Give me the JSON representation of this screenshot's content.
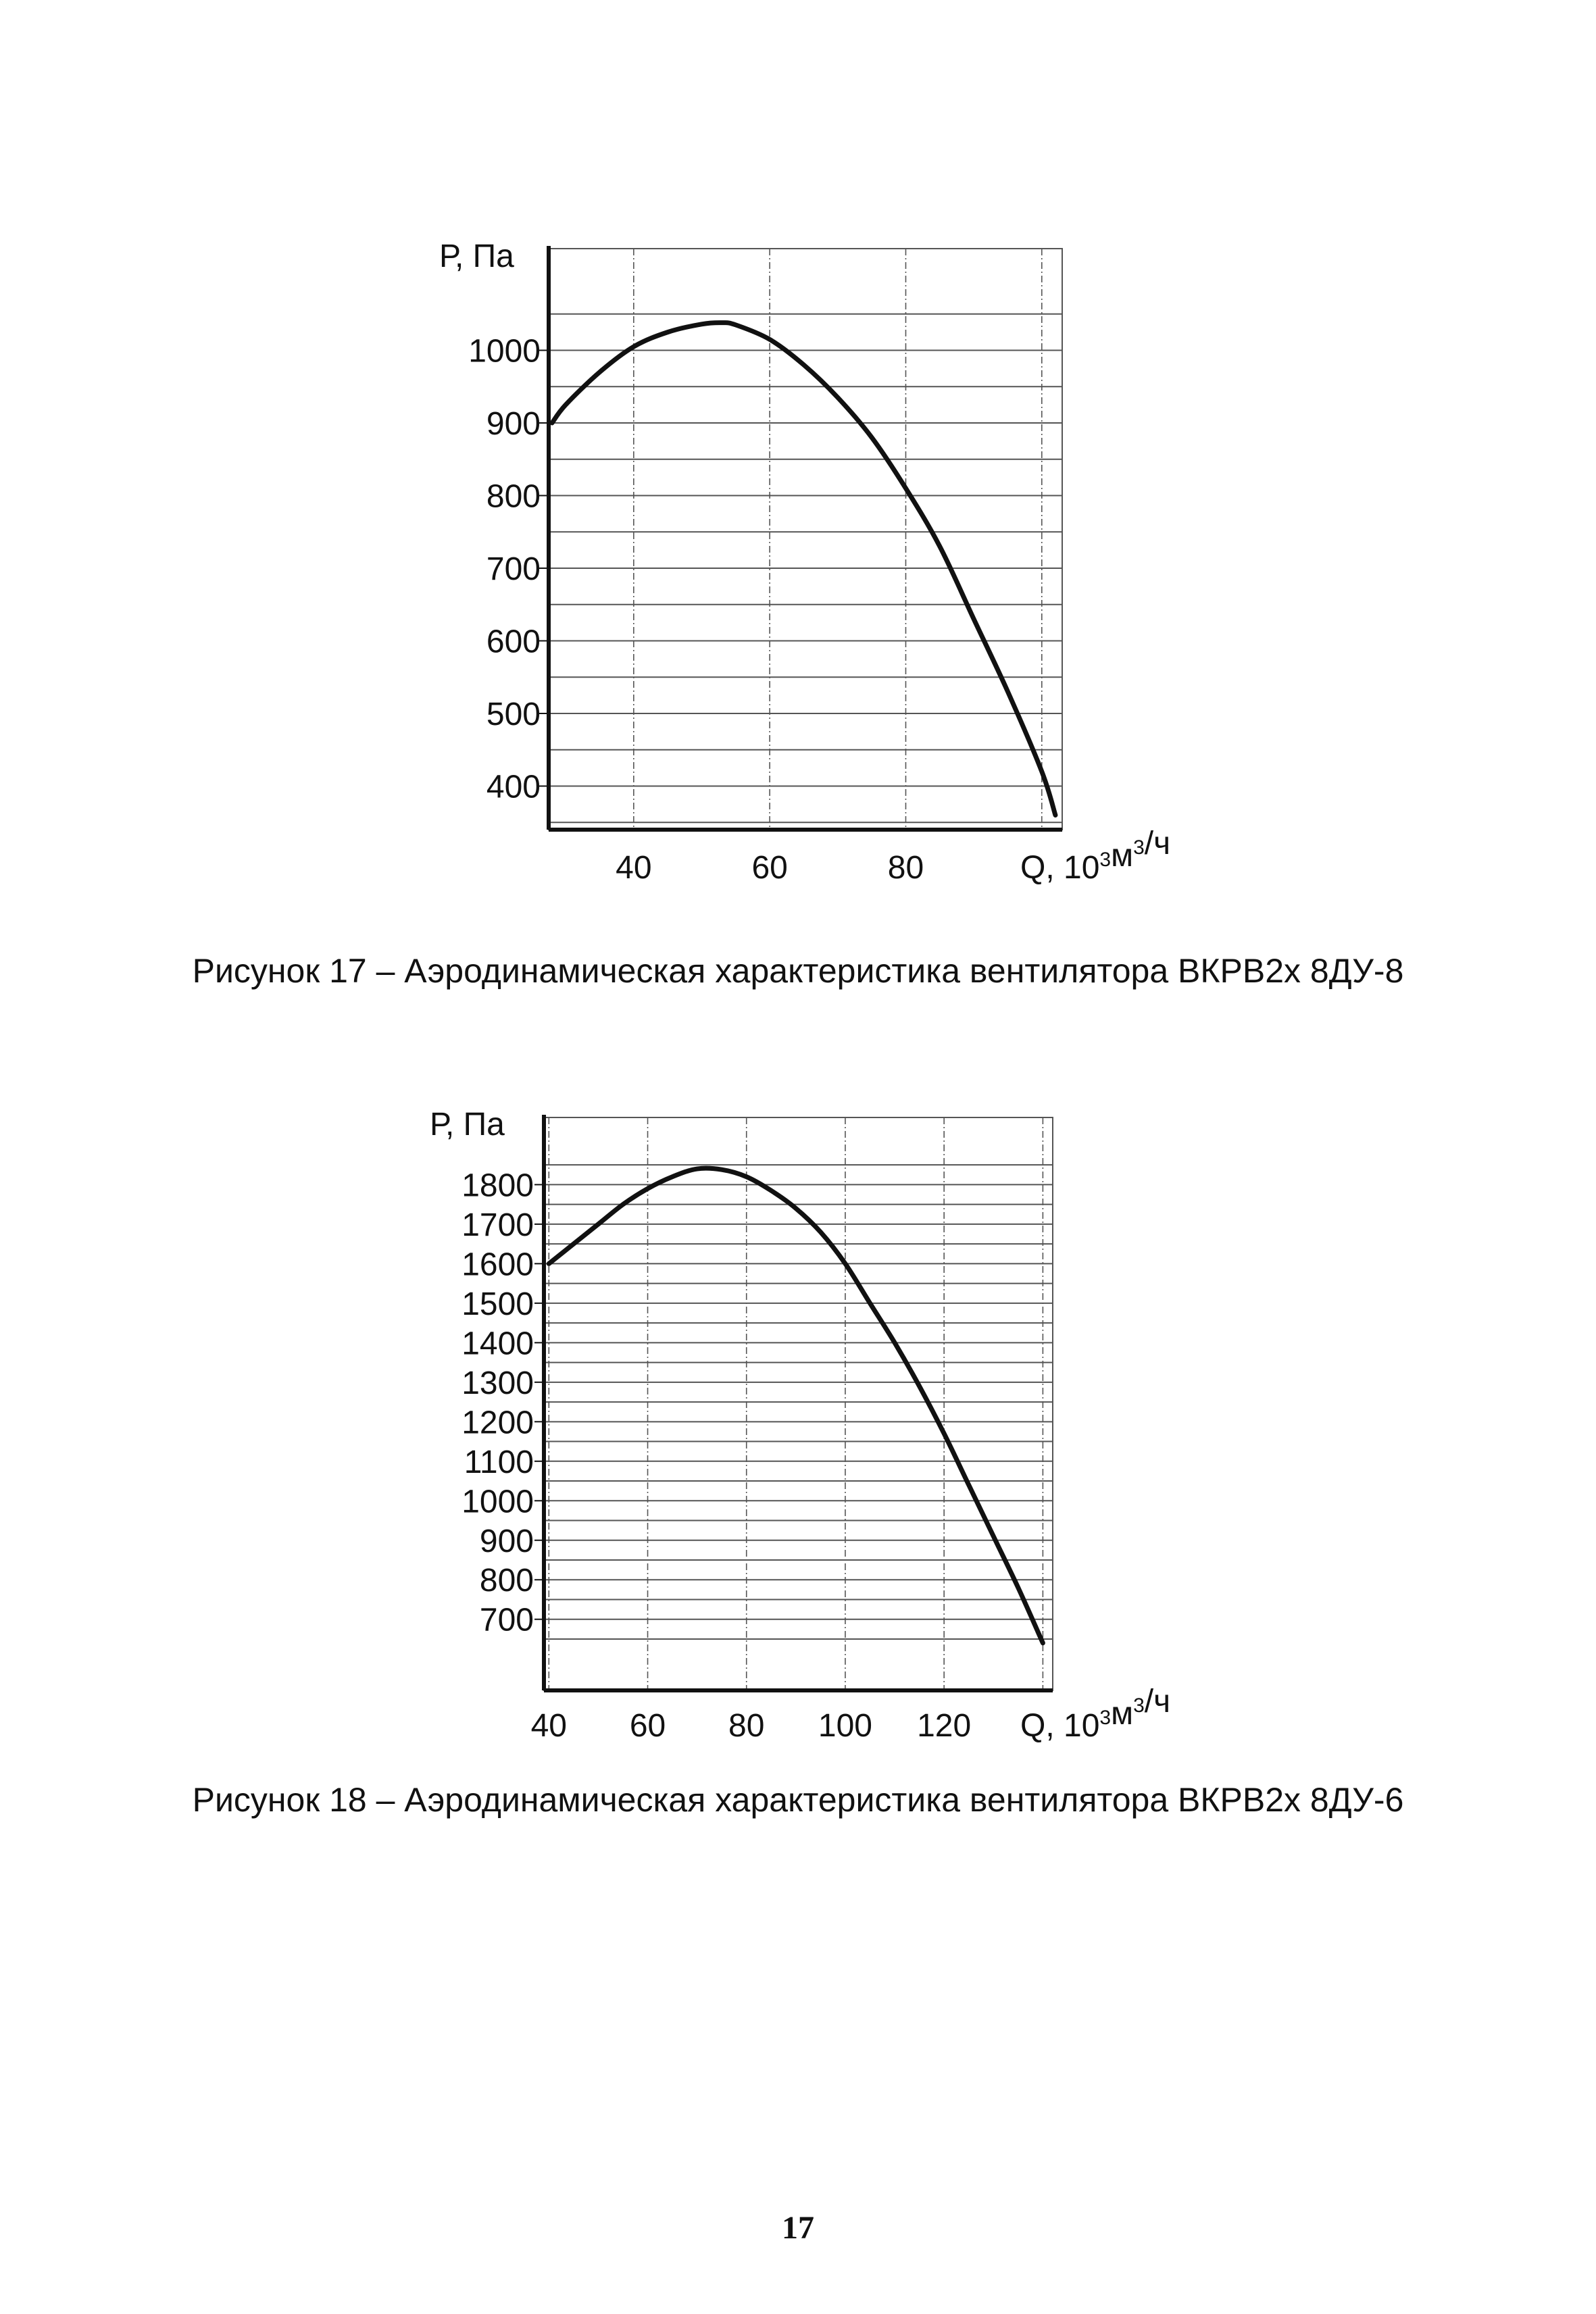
{
  "chart_data": [
    {
      "type": "line",
      "title": "",
      "ylabel": "Р, Па",
      "xlabel": "Q, 10³м³/ч",
      "xlabel_parts": {
        "base": "Q, 10",
        "exp1": "3",
        "mid": "м",
        "exp2": "3",
        "tail": "/ч"
      },
      "xlim": [
        27.5,
        103
      ],
      "ylim": [
        340,
        1140
      ],
      "x_ticks": [
        40,
        60,
        80
      ],
      "x_tick_labels": [
        "40",
        "60",
        "80"
      ],
      "y_ticks": [
        400,
        500,
        600,
        700,
        800,
        900,
        1000
      ],
      "y_tick_labels": [
        "400",
        "500",
        "600",
        "700",
        "800",
        "900",
        "1000"
      ],
      "grid": true,
      "series": [
        {
          "name": "ВКРВ2х 8ДУ-8",
          "x": [
            28,
            30,
            35,
            40,
            45,
            50,
            53,
            55,
            60,
            65,
            70,
            75,
            80,
            85,
            90,
            95,
            100,
            102
          ],
          "y": [
            900,
            925,
            970,
            1005,
            1025,
            1036,
            1038,
            1035,
            1015,
            980,
            935,
            880,
            810,
            730,
            630,
            530,
            420,
            360
          ]
        }
      ]
    },
    {
      "type": "line",
      "title": "",
      "ylabel": "Р, Па",
      "xlabel": "Q, 10³м³/ч",
      "xlabel_parts": {
        "base": "Q, 10",
        "exp1": "3",
        "mid": "м",
        "exp2": "3",
        "tail": "/ч"
      },
      "xlim": [
        39,
        142
      ],
      "ylim": [
        520,
        1970
      ],
      "x_ticks": [
        40,
        60,
        80,
        100,
        120
      ],
      "x_tick_labels": [
        "40",
        "60",
        "80",
        "100",
        "120"
      ],
      "y_ticks": [
        700,
        800,
        900,
        1000,
        1100,
        1200,
        1300,
        1400,
        1500,
        1600,
        1700,
        1800
      ],
      "y_tick_labels": [
        "700",
        "800",
        "900",
        "1000",
        "1100",
        "1200",
        "1300",
        "1400",
        "1500",
        "1600",
        "1700",
        "1800"
      ],
      "grid": true,
      "series": [
        {
          "name": "ВКРВ2х 8ДУ-6",
          "x": [
            40,
            45,
            50,
            55,
            60,
            65,
            70,
            75,
            80,
            85,
            90,
            95,
            100,
            105,
            110,
            115,
            120,
            125,
            130,
            135,
            140
          ],
          "y": [
            1600,
            1650,
            1700,
            1750,
            1790,
            1820,
            1840,
            1838,
            1820,
            1785,
            1740,
            1680,
            1600,
            1500,
            1400,
            1290,
            1170,
            1040,
            910,
            780,
            640
          ]
        }
      ]
    }
  ],
  "captions": [
    "Рисунок 17 – Аэродинамическая характеристика вентилятора ВКРВ2х 8ДУ-8",
    "Рисунок 18 – Аэродинамическая характеристика вентилятора ВКРВ2х 8ДУ-6"
  ],
  "page_number": "17",
  "colors": {
    "ink": "#111111",
    "grid": "#555555",
    "paper": "#ffffff"
  }
}
